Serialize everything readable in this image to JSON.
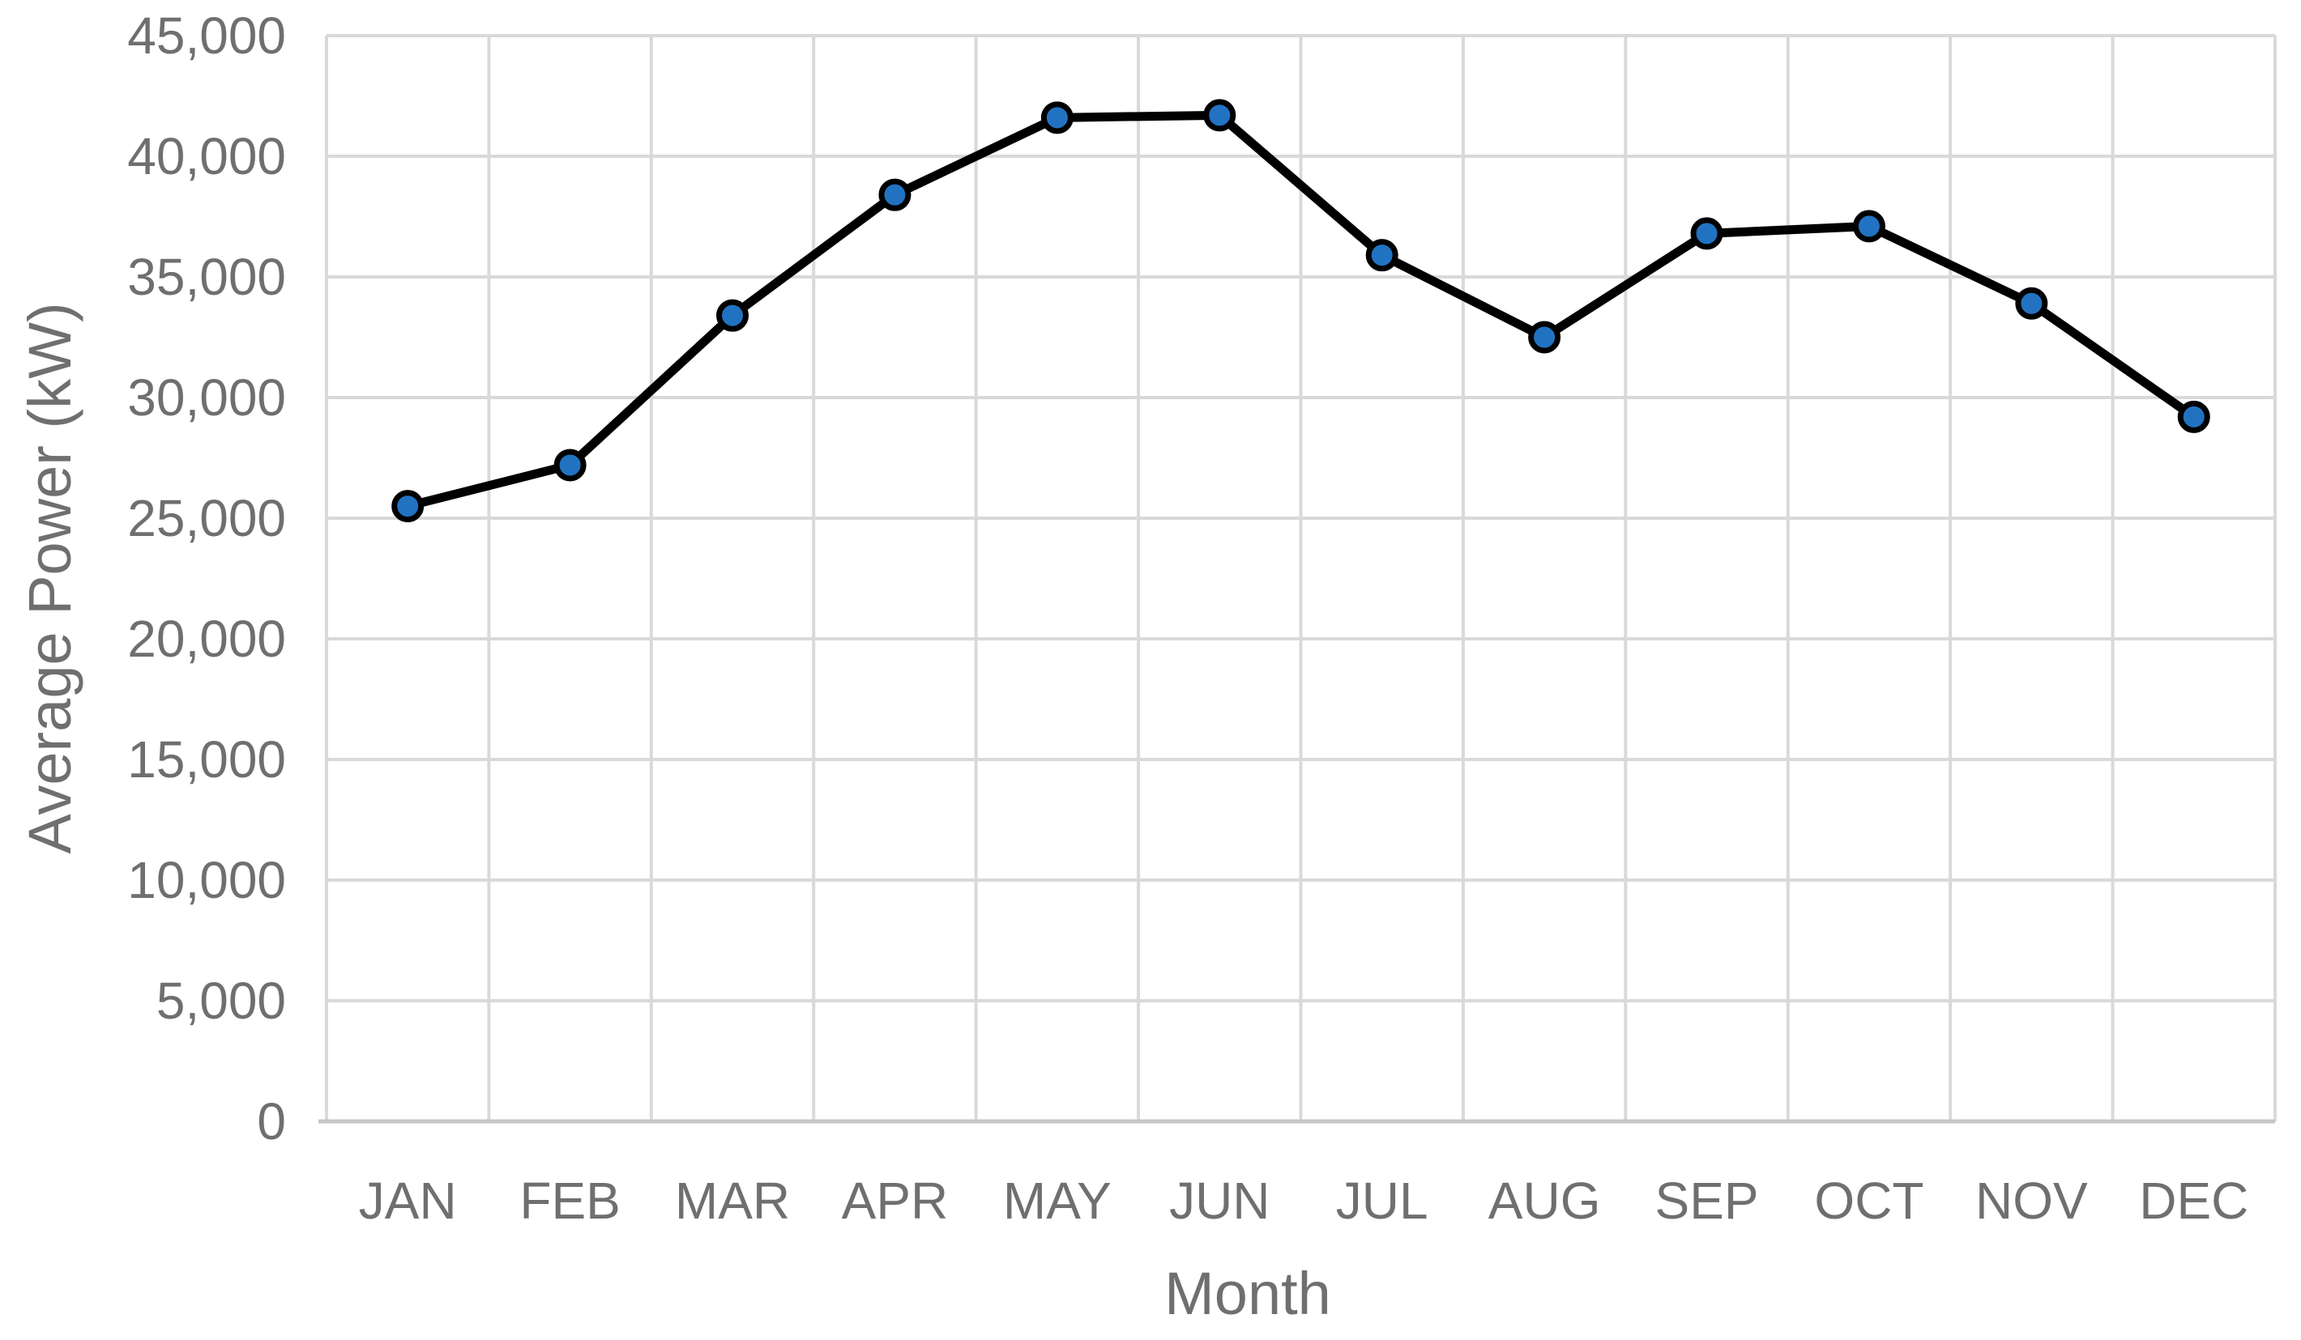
{
  "chart_data": {
    "type": "line",
    "title": "",
    "xlabel": "Month",
    "ylabel": "Average Power (kW)",
    "categories": [
      "JAN",
      "FEB",
      "MAR",
      "APR",
      "MAY",
      "JUN",
      "JUL",
      "AUG",
      "SEP",
      "OCT",
      "NOV",
      "DEC"
    ],
    "values": [
      25500,
      27200,
      33400,
      38400,
      41600,
      41700,
      35900,
      32500,
      36800,
      37100,
      33900,
      29200
    ],
    "series_name": "Average Power (kW)",
    "ylim": [
      0,
      45000
    ],
    "ytick_interval": 5000,
    "ytick_labels": [
      "0",
      "5,000",
      "10,000",
      "15,000",
      "20,000",
      "25,000",
      "30,000",
      "35,000",
      "40,000",
      "45,000"
    ],
    "grid": true,
    "legend": "none",
    "colors": {
      "line": "#000000",
      "marker_fill": "#2173c2",
      "marker_stroke": "#000000",
      "gridline": "#d9d9d9",
      "axis_line": "#c6c6c6",
      "label_text": "#6f6f6f"
    }
  }
}
